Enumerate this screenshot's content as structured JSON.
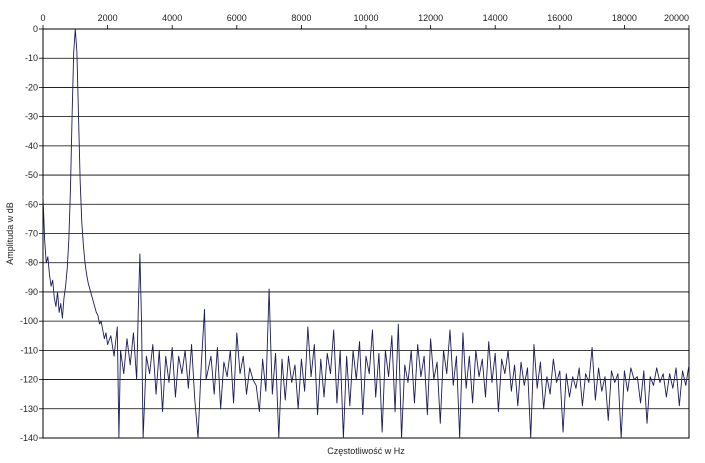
{
  "chart_data": {
    "type": "line",
    "xlabel": "Częstotliwość w Hz",
    "ylabel": "Amplituda w dB",
    "xlim": [
      0,
      20000
    ],
    "ylim": [
      -140,
      0
    ],
    "x_ticks": [
      0,
      2000,
      4000,
      6000,
      8000,
      10000,
      12000,
      14000,
      16000,
      18000,
      20000
    ],
    "y_ticks": [
      0,
      -10,
      -20,
      -30,
      -40,
      -50,
      -60,
      -70,
      -80,
      -90,
      -100,
      -110,
      -120,
      -130,
      -140
    ],
    "x_tick_labels": [
      "0",
      "2000",
      "4000",
      "6000",
      "8000",
      "10000",
      "12000",
      "14000",
      "16000",
      "18000",
      "20000"
    ],
    "y_tick_labels": [
      "0",
      "-10",
      "-20",
      "-30",
      "-40",
      "-50",
      "-60",
      "-70",
      "-80",
      "-90",
      "-100",
      "-110",
      "-120",
      "-130",
      "-140"
    ],
    "x_axis_position": "top",
    "grid": "horizontal",
    "series": [
      {
        "color": "#1c1c5a",
        "points": [
          [
            0,
            -57
          ],
          [
            50,
            -72
          ],
          [
            100,
            -80
          ],
          [
            150,
            -78
          ],
          [
            200,
            -84
          ],
          [
            250,
            -88
          ],
          [
            300,
            -86
          ],
          [
            350,
            -92
          ],
          [
            400,
            -95
          ],
          [
            450,
            -90
          ],
          [
            500,
            -97
          ],
          [
            550,
            -94
          ],
          [
            600,
            -99
          ],
          [
            650,
            -92
          ],
          [
            700,
            -88
          ],
          [
            750,
            -82
          ],
          [
            800,
            -72
          ],
          [
            850,
            -55
          ],
          [
            900,
            -30
          ],
          [
            950,
            -8
          ],
          [
            1000,
            0
          ],
          [
            1050,
            -8
          ],
          [
            1100,
            -30
          ],
          [
            1150,
            -52
          ],
          [
            1200,
            -66
          ],
          [
            1250,
            -74
          ],
          [
            1300,
            -80
          ],
          [
            1350,
            -84
          ],
          [
            1400,
            -87
          ],
          [
            1450,
            -89
          ],
          [
            1500,
            -91
          ],
          [
            1550,
            -93
          ],
          [
            1600,
            -95
          ],
          [
            1650,
            -97
          ],
          [
            1700,
            -98
          ],
          [
            1750,
            -101
          ],
          [
            1800,
            -100
          ],
          [
            1850,
            -103
          ],
          [
            1900,
            -106
          ],
          [
            1950,
            -104
          ],
          [
            2000,
            -108
          ],
          [
            2100,
            -105
          ],
          [
            2200,
            -112
          ],
          [
            2300,
            -102
          ],
          [
            2350,
            -140
          ],
          [
            2400,
            -110
          ],
          [
            2500,
            -118
          ],
          [
            2600,
            -106
          ],
          [
            2700,
            -115
          ],
          [
            2800,
            -104
          ],
          [
            2900,
            -120
          ],
          [
            2950,
            -96
          ],
          [
            3000,
            -77
          ],
          [
            3050,
            -100
          ],
          [
            3100,
            -140
          ],
          [
            3200,
            -112
          ],
          [
            3300,
            -118
          ],
          [
            3400,
            -108
          ],
          [
            3500,
            -125
          ],
          [
            3600,
            -110
          ],
          [
            3700,
            -131
          ],
          [
            3800,
            -112
          ],
          [
            3900,
            -121
          ],
          [
            4000,
            -109
          ],
          [
            4100,
            -126
          ],
          [
            4200,
            -112
          ],
          [
            4300,
            -118
          ],
          [
            4400,
            -110
          ],
          [
            4500,
            -123
          ],
          [
            4600,
            -108
          ],
          [
            4700,
            -127
          ],
          [
            4800,
            -140
          ],
          [
            4900,
            -115
          ],
          [
            5000,
            -96
          ],
          [
            5050,
            -120
          ],
          [
            5200,
            -112
          ],
          [
            5300,
            -125
          ],
          [
            5400,
            -109
          ],
          [
            5500,
            -130
          ],
          [
            5600,
            -114
          ],
          [
            5700,
            -119
          ],
          [
            5800,
            -110
          ],
          [
            5900,
            -128
          ],
          [
            6000,
            -104
          ],
          [
            6100,
            -118
          ],
          [
            6200,
            -112
          ],
          [
            6300,
            -125
          ],
          [
            6400,
            -116
          ],
          [
            6500,
            -120
          ],
          [
            6600,
            -122
          ],
          [
            6700,
            -131
          ],
          [
            6800,
            -113
          ],
          [
            6900,
            -124
          ],
          [
            7000,
            -89
          ],
          [
            7050,
            -108
          ],
          [
            7100,
            -125
          ],
          [
            7200,
            -111
          ],
          [
            7300,
            -140
          ],
          [
            7400,
            -113
          ],
          [
            7500,
            -127
          ],
          [
            7600,
            -112
          ],
          [
            7700,
            -121
          ],
          [
            7800,
            -115
          ],
          [
            7900,
            -130
          ],
          [
            8000,
            -113
          ],
          [
            8100,
            -124
          ],
          [
            8200,
            -102
          ],
          [
            8300,
            -119
          ],
          [
            8400,
            -108
          ],
          [
            8500,
            -132
          ],
          [
            8600,
            -113
          ],
          [
            8700,
            -126
          ],
          [
            8800,
            -111
          ],
          [
            8900,
            -118
          ],
          [
            9000,
            -103
          ],
          [
            9100,
            -128
          ],
          [
            9200,
            -110
          ],
          [
            9300,
            -140
          ],
          [
            9400,
            -112
          ],
          [
            9500,
            -129
          ],
          [
            9600,
            -110
          ],
          [
            9700,
            -120
          ],
          [
            9800,
            -107
          ],
          [
            9900,
            -132
          ],
          [
            10000,
            -112
          ],
          [
            10100,
            -118
          ],
          [
            10200,
            -103
          ],
          [
            10300,
            -126
          ],
          [
            10400,
            -111
          ],
          [
            10500,
            -138
          ],
          [
            10600,
            -110
          ],
          [
            10700,
            -119
          ],
          [
            10800,
            -105
          ],
          [
            10900,
            -131
          ],
          [
            11000,
            -101
          ],
          [
            11100,
            -140
          ],
          [
            11200,
            -115
          ],
          [
            11300,
            -121
          ],
          [
            11400,
            -110
          ],
          [
            11500,
            -128
          ],
          [
            11600,
            -108
          ],
          [
            11700,
            -119
          ],
          [
            11800,
            -112
          ],
          [
            11900,
            -132
          ],
          [
            12000,
            -106
          ],
          [
            12100,
            -120
          ],
          [
            12200,
            -114
          ],
          [
            12300,
            -135
          ],
          [
            12400,
            -110
          ],
          [
            12500,
            -118
          ],
          [
            12600,
            -103
          ],
          [
            12700,
            -122
          ],
          [
            12800,
            -112
          ],
          [
            12900,
            -140
          ],
          [
            13000,
            -104
          ],
          [
            13100,
            -123
          ],
          [
            13200,
            -112
          ],
          [
            13300,
            -128
          ],
          [
            13400,
            -110
          ],
          [
            13500,
            -119
          ],
          [
            13600,
            -113
          ],
          [
            13700,
            -126
          ],
          [
            13800,
            -107
          ],
          [
            13900,
            -121
          ],
          [
            14000,
            -111
          ],
          [
            14100,
            -131
          ],
          [
            14200,
            -113
          ],
          [
            14300,
            -118
          ],
          [
            14400,
            -110
          ],
          [
            14500,
            -124
          ],
          [
            14600,
            -115
          ],
          [
            14700,
            -129
          ],
          [
            14800,
            -114
          ],
          [
            14900,
            -122
          ],
          [
            15000,
            -116
          ],
          [
            15100,
            -140
          ],
          [
            15200,
            -108
          ],
          [
            15300,
            -123
          ],
          [
            15400,
            -114
          ],
          [
            15500,
            -130
          ],
          [
            15600,
            -119
          ],
          [
            15700,
            -125
          ],
          [
            15800,
            -113
          ],
          [
            15900,
            -121
          ],
          [
            16000,
            -117
          ],
          [
            16100,
            -138
          ],
          [
            16200,
            -118
          ],
          [
            16300,
            -126
          ],
          [
            16400,
            -119
          ],
          [
            16500,
            -123
          ],
          [
            16600,
            -116
          ],
          [
            16700,
            -129
          ],
          [
            16800,
            -118
          ],
          [
            16900,
            -121
          ],
          [
            17000,
            -109
          ],
          [
            17100,
            -127
          ],
          [
            17200,
            -116
          ],
          [
            17300,
            -124
          ],
          [
            17400,
            -119
          ],
          [
            17500,
            -134
          ],
          [
            17600,
            -117
          ],
          [
            17700,
            -121
          ],
          [
            17800,
            -118
          ],
          [
            17900,
            -140
          ],
          [
            18000,
            -117
          ],
          [
            18100,
            -124
          ],
          [
            18200,
            -116
          ],
          [
            18300,
            -120
          ],
          [
            18400,
            -119
          ],
          [
            18500,
            -128
          ],
          [
            18600,
            -117
          ],
          [
            18700,
            -135
          ],
          [
            18800,
            -119
          ],
          [
            18900,
            -122
          ],
          [
            19000,
            -116
          ],
          [
            19100,
            -121
          ],
          [
            19200,
            -118
          ],
          [
            19300,
            -126
          ],
          [
            19400,
            -118
          ],
          [
            19500,
            -123
          ],
          [
            19600,
            -116
          ],
          [
            19700,
            -129
          ],
          [
            19800,
            -117
          ],
          [
            19900,
            -122
          ],
          [
            20000,
            -115
          ]
        ]
      }
    ]
  }
}
